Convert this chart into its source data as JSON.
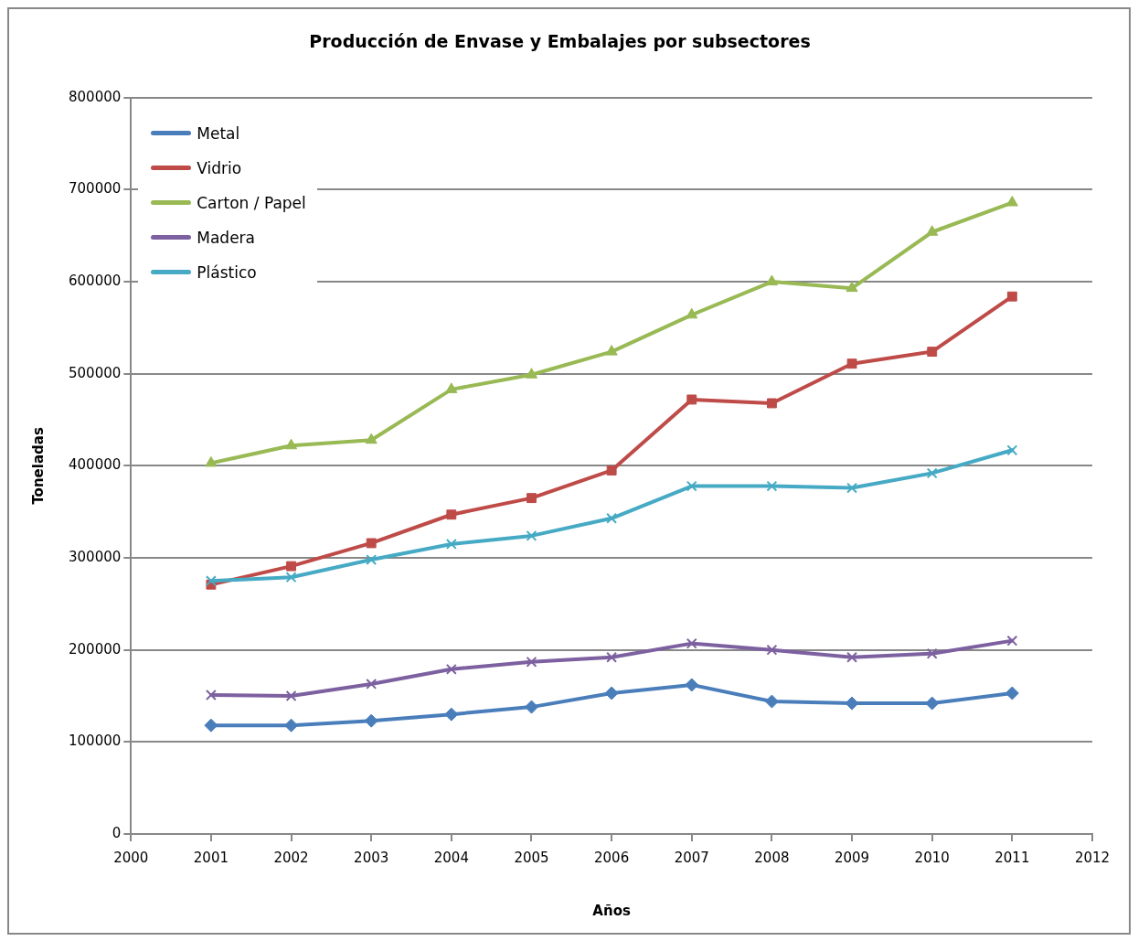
{
  "chart_data": {
    "type": "line",
    "title": "Producción de Envase y Embalajes por subsectores",
    "xlabel": "Años",
    "ylabel": "Toneladas",
    "x": [
      2001,
      2002,
      2003,
      2004,
      2005,
      2006,
      2007,
      2008,
      2009,
      2010,
      2011
    ],
    "xlim": [
      2000,
      2012
    ],
    "xticks": [
      2000,
      2001,
      2002,
      2003,
      2004,
      2005,
      2006,
      2007,
      2008,
      2009,
      2010,
      2011,
      2012
    ],
    "ylim": [
      0,
      800000
    ],
    "yticks": [
      0,
      100000,
      200000,
      300000,
      400000,
      500000,
      600000,
      700000,
      800000
    ],
    "grid": "y",
    "legend": "top left",
    "line_style": "solid",
    "series": [
      {
        "name": "Metal",
        "color": "#4a7ebb",
        "marker": "diamond",
        "values": [
          118000,
          118000,
          123000,
          130000,
          138000,
          153000,
          162000,
          144000,
          142000,
          142000,
          153000
        ]
      },
      {
        "name": "Vidrio",
        "color": "#be4b48",
        "marker": "square",
        "values": [
          271000,
          291000,
          316000,
          347000,
          365000,
          395000,
          472000,
          468000,
          511000,
          524000,
          584000
        ]
      },
      {
        "name": "Carton / Papel",
        "color": "#98b954",
        "marker": "triangle",
        "values": [
          403000,
          422000,
          428000,
          483000,
          499000,
          524000,
          564000,
          600000,
          593000,
          654000,
          686000
        ]
      },
      {
        "name": "Madera",
        "color": "#7d60a0",
        "marker": "cross",
        "values": [
          151000,
          150000,
          163000,
          179000,
          187000,
          192000,
          207000,
          200000,
          192000,
          196000,
          210000
        ]
      },
      {
        "name": "Plástico",
        "color": "#46aac5",
        "marker": "cross",
        "values": [
          275000,
          279000,
          298000,
          315000,
          324000,
          343000,
          378000,
          378000,
          376000,
          392000,
          417000
        ]
      }
    ]
  }
}
